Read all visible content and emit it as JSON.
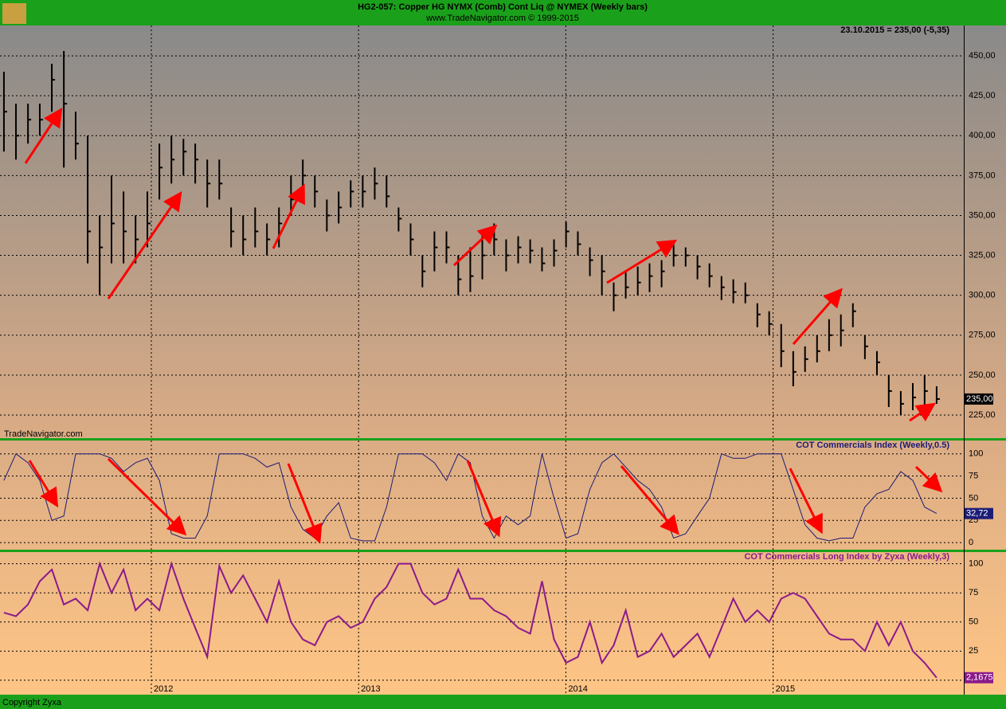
{
  "header": {
    "title": "HG2-057:  Copper HG NYMX (Comb) Cont Liq @ NYMEX  (Weekly bars)",
    "subtitle": "www.TradeNavigator.com © 1999-2015"
  },
  "chart_data": [
    {
      "type": "ohlc",
      "annotation": "23.10.2015 = 235,00 (-5,35)",
      "watermark": "TradeNavigator.com",
      "color": "#000000",
      "last_label": "235,00",
      "x": [
        2011.289,
        2011.347,
        2011.405,
        2011.462,
        2011.52,
        2011.578,
        2011.635,
        2011.693,
        2011.751,
        2011.808,
        2011.866,
        2011.924,
        2011.981,
        2012.039,
        2012.097,
        2012.155,
        2012.212,
        2012.27,
        2012.328,
        2012.385,
        2012.443,
        2012.501,
        2012.558,
        2012.616,
        2012.674,
        2012.731,
        2012.789,
        2012.847,
        2012.904,
        2012.962,
        2013.02,
        2013.078,
        2013.135,
        2013.193,
        2013.251,
        2013.308,
        2013.366,
        2013.424,
        2013.481,
        2013.539,
        2013.597,
        2013.654,
        2013.712,
        2013.77,
        2013.828,
        2013.885,
        2013.943,
        2014.001,
        2014.058,
        2014.116,
        2014.174,
        2014.231,
        2014.289,
        2014.347,
        2014.404,
        2014.462,
        2014.52,
        2014.578,
        2014.635,
        2014.693,
        2014.751,
        2014.808,
        2014.866,
        2014.924,
        2014.981,
        2015.039,
        2015.097,
        2015.154,
        2015.212,
        2015.27,
        2015.327,
        2015.385,
        2015.443,
        2015.501,
        2015.558,
        2015.616,
        2015.674,
        2015.731,
        2015.789
      ],
      "high": [
        440,
        420,
        420,
        420,
        445,
        453,
        415,
        400,
        350,
        375,
        365,
        350,
        365,
        395,
        400,
        398,
        395,
        385,
        385,
        355,
        350,
        355,
        345,
        355,
        375,
        385,
        375,
        360,
        365,
        372,
        375,
        380,
        375,
        355,
        345,
        325,
        340,
        340,
        325,
        330,
        340,
        345,
        335,
        337,
        335,
        330,
        335,
        346,
        340,
        330,
        325,
        308,
        315,
        318,
        320,
        322,
        332,
        330,
        325,
        320,
        312,
        310,
        308,
        295,
        290,
        282,
        265,
        268,
        275,
        285,
        288,
        295,
        275,
        265,
        250,
        240,
        245,
        250,
        243
      ],
      "low": [
        390,
        385,
        395,
        400,
        415,
        380,
        385,
        320,
        300,
        320,
        320,
        320,
        330,
        360,
        370,
        375,
        370,
        355,
        360,
        330,
        325,
        330,
        325,
        330,
        350,
        365,
        355,
        340,
        345,
        355,
        355,
        360,
        355,
        340,
        325,
        305,
        315,
        320,
        300,
        302,
        310,
        325,
        315,
        320,
        320,
        315,
        318,
        330,
        325,
        312,
        300,
        290,
        298,
        300,
        302,
        305,
        318,
        318,
        310,
        305,
        297,
        295,
        295,
        280,
        275,
        255,
        243,
        252,
        258,
        265,
        268,
        280,
        260,
        250,
        230,
        225,
        228,
        230,
        232
      ],
      "close": [
        415,
        400,
        410,
        410,
        435,
        420,
        395,
        340,
        330,
        345,
        340,
        335,
        345,
        380,
        385,
        390,
        385,
        370,
        370,
        340,
        335,
        340,
        335,
        345,
        360,
        375,
        365,
        350,
        355,
        365,
        365,
        370,
        362,
        348,
        335,
        315,
        330,
        330,
        310,
        312,
        325,
        335,
        325,
        330,
        328,
        320,
        328,
        340,
        332,
        322,
        315,
        300,
        305,
        308,
        312,
        315,
        325,
        325,
        318,
        312,
        305,
        302,
        300,
        288,
        282,
        265,
        252,
        260,
        265,
        275,
        278,
        290,
        268,
        258,
        240,
        232,
        236,
        240,
        235
      ],
      "xlim": [
        2011.27,
        2015.92
      ],
      "xticks": [
        2012,
        2013,
        2014,
        2015
      ],
      "ylim": [
        210.5,
        469
      ],
      "yticks": [
        {
          "value": 225,
          "label": "225,00"
        },
        {
          "value": 250,
          "label": "250,00"
        },
        {
          "value": 275,
          "label": "275,00"
        },
        {
          "value": 300,
          "label": "300,00"
        },
        {
          "value": 325,
          "label": "325,00"
        },
        {
          "value": 350,
          "label": "350,00"
        },
        {
          "value": 375,
          "label": "375,00"
        },
        {
          "value": 400,
          "label": "400,00"
        },
        {
          "value": 425,
          "label": "425,00"
        },
        {
          "value": 450,
          "label": "450,00"
        }
      ]
    },
    {
      "type": "line",
      "title": "COT Commercials Index (Weekly,0.5)",
      "color": "#1c1c78",
      "last_label": "32,72",
      "x": [
        2011.289,
        2011.347,
        2011.405,
        2011.462,
        2011.52,
        2011.578,
        2011.635,
        2011.693,
        2011.751,
        2011.808,
        2011.866,
        2011.924,
        2011.981,
        2012.039,
        2012.097,
        2012.155,
        2012.212,
        2012.27,
        2012.328,
        2012.385,
        2012.443,
        2012.501,
        2012.558,
        2012.616,
        2012.674,
        2012.731,
        2012.789,
        2012.847,
        2012.904,
        2012.962,
        2013.02,
        2013.078,
        2013.135,
        2013.193,
        2013.251,
        2013.308,
        2013.366,
        2013.424,
        2013.481,
        2013.539,
        2013.597,
        2013.654,
        2013.712,
        2013.77,
        2013.828,
        2013.885,
        2013.943,
        2014.001,
        2014.058,
        2014.116,
        2014.174,
        2014.231,
        2014.289,
        2014.347,
        2014.404,
        2014.462,
        2014.52,
        2014.578,
        2014.635,
        2014.693,
        2014.751,
        2014.808,
        2014.866,
        2014.924,
        2014.981,
        2015.039,
        2015.097,
        2015.154,
        2015.212,
        2015.27,
        2015.327,
        2015.385,
        2015.443,
        2015.501,
        2015.558,
        2015.616,
        2015.674,
        2015.731,
        2015.789
      ],
      "values": [
        70,
        100,
        90,
        70,
        25,
        30,
        100,
        100,
        100,
        95,
        80,
        90,
        95,
        70,
        10,
        5,
        5,
        30,
        100,
        100,
        100,
        95,
        85,
        90,
        40,
        15,
        5,
        30,
        45,
        5,
        2,
        2,
        40,
        100,
        100,
        100,
        90,
        70,
        100,
        90,
        30,
        5,
        30,
        20,
        30,
        100,
        50,
        5,
        10,
        60,
        90,
        100,
        85,
        70,
        60,
        40,
        5,
        10,
        30,
        50,
        100,
        95,
        95,
        100,
        100,
        100,
        60,
        20,
        5,
        2,
        5,
        5,
        40,
        55,
        60,
        80,
        70,
        40,
        32.72
      ],
      "xlim": [
        2011.27,
        2015.92
      ],
      "xticks": [
        2012,
        2013,
        2014,
        2015
      ],
      "ylim": [
        -8,
        115
      ],
      "yticks": [
        0,
        25,
        50,
        75,
        100
      ]
    },
    {
      "type": "line",
      "title": "COT Commercials Long Index by Zyxa (Weekly,3)",
      "color": "#8b1a8b",
      "last_label": "2,1675",
      "x": [
        2011.289,
        2011.347,
        2011.405,
        2011.462,
        2011.52,
        2011.578,
        2011.635,
        2011.693,
        2011.751,
        2011.808,
        2011.866,
        2011.924,
        2011.981,
        2012.039,
        2012.097,
        2012.155,
        2012.212,
        2012.27,
        2012.328,
        2012.385,
        2012.443,
        2012.501,
        2012.558,
        2012.616,
        2012.674,
        2012.731,
        2012.789,
        2012.847,
        2012.904,
        2012.962,
        2013.02,
        2013.078,
        2013.135,
        2013.193,
        2013.251,
        2013.308,
        2013.366,
        2013.424,
        2013.481,
        2013.539,
        2013.597,
        2013.654,
        2013.712,
        2013.77,
        2013.828,
        2013.885,
        2013.943,
        2014.001,
        2014.058,
        2014.116,
        2014.174,
        2014.231,
        2014.289,
        2014.347,
        2014.404,
        2014.462,
        2014.52,
        2014.578,
        2014.635,
        2014.693,
        2014.751,
        2014.808,
        2014.866,
        2014.924,
        2014.981,
        2015.039,
        2015.097,
        2015.154,
        2015.212,
        2015.27,
        2015.327,
        2015.385,
        2015.443,
        2015.501,
        2015.558,
        2015.616,
        2015.674,
        2015.731,
        2015.789
      ],
      "values": [
        58,
        55,
        65,
        85,
        95,
        65,
        70,
        60,
        100,
        75,
        95,
        60,
        70,
        60,
        100,
        70,
        45,
        20,
        98,
        75,
        90,
        70,
        50,
        85,
        50,
        35,
        30,
        50,
        55,
        45,
        50,
        70,
        80,
        100,
        100,
        75,
        65,
        70,
        95,
        70,
        70,
        60,
        55,
        45,
        40,
        85,
        35,
        15,
        20,
        50,
        15,
        30,
        60,
        20,
        25,
        40,
        20,
        30,
        40,
        20,
        45,
        70,
        50,
        60,
        50,
        70,
        75,
        70,
        55,
        40,
        35,
        35,
        25,
        50,
        30,
        50,
        25,
        15,
        2.1675
      ],
      "xlim": [
        2011.27,
        2015.92
      ],
      "xticks": [
        2012,
        2013,
        2014,
        2015
      ],
      "ylim": [
        -11,
        110
      ],
      "yticks": [
        0,
        25,
        50,
        75,
        100
      ]
    }
  ],
  "footer": "Copyright Zyxa"
}
